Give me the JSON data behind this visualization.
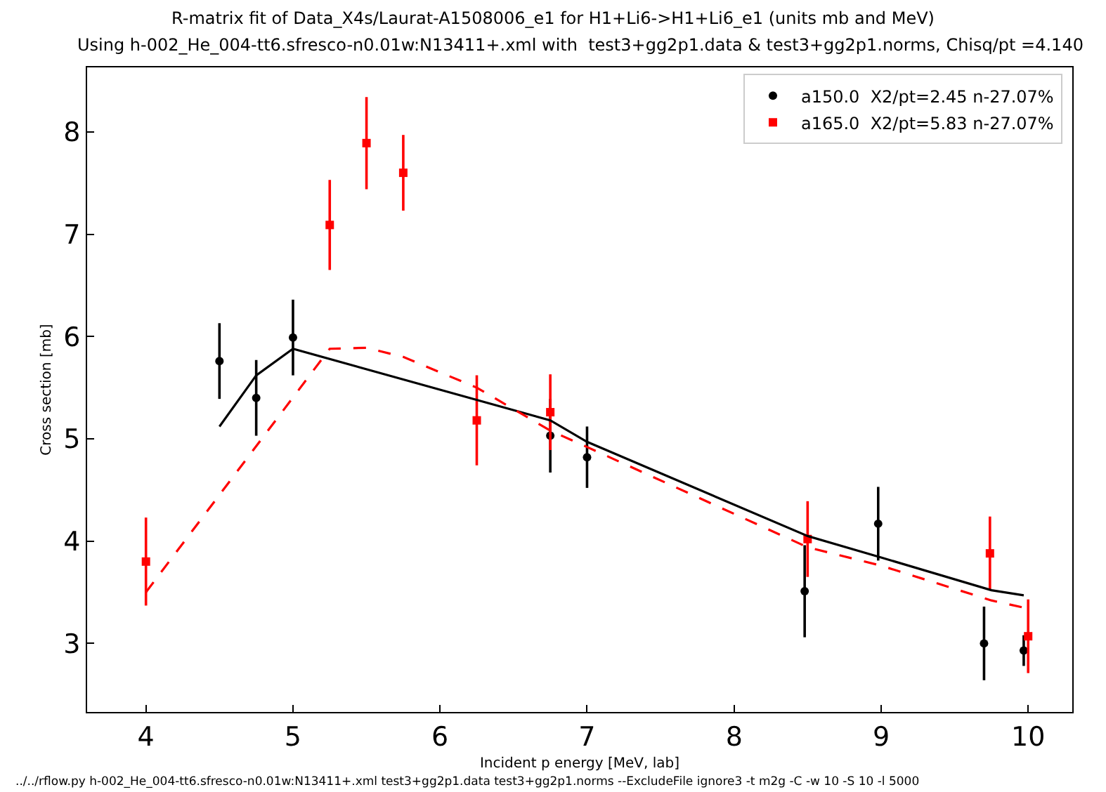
{
  "chart_data": {
    "type": "scatter",
    "title": "R-matrix fit of Data_X4s/Laurat-A1508006_e1 for H1+Li6->H1+Li6_e1 (units mb and MeV)",
    "subtitle": "Using h-002_He_004-tt6.sfresco-n0.01w:N13411+.xml with  test3+gg2p1.data & test3+gg2p1.norms, Chisq/pt =4.140",
    "xlabel": "Incident p energy [MeV, lab]",
    "ylabel": "Cross section [mb]",
    "annotations": [
      "../../rflow.py h-002_He_004-tt6.sfresco-n0.01w:N13411+.xml test3+gg2p1.data test3+gg2p1.norms --ExcludeFile ignore3 -t m2g -C -w 10 -S 10 -l 5000"
    ],
    "xlim": [
      3.6,
      10.3
    ],
    "ylim": [
      2.33,
      8.63
    ],
    "xticks": [
      4,
      5,
      6,
      7,
      8,
      9,
      10
    ],
    "yticks": [
      3,
      4,
      5,
      6,
      7,
      8
    ],
    "grid": false,
    "legend": "top right",
    "series": [
      {
        "name": "a150.0  X2/pt=2.45 n-27.07%",
        "type": "scatter",
        "marker": "circle",
        "color": "#000000",
        "x": [
          4.5,
          4.75,
          5.0,
          6.75,
          7.0,
          8.48,
          8.98,
          9.7,
          9.97
        ],
        "values": [
          5.76,
          5.4,
          5.99,
          5.03,
          4.82,
          3.51,
          4.17,
          3.0,
          2.93
        ],
        "errors": [
          0.37,
          0.37,
          0.37,
          0.36,
          0.3,
          0.45,
          0.36,
          0.36,
          0.15
        ]
      },
      {
        "name": "a165.0  X2/pt=5.83 n-27.07%",
        "type": "scatter",
        "marker": "square",
        "color": "#ff0000",
        "x": [
          4.0,
          5.25,
          5.5,
          5.75,
          6.25,
          6.75,
          8.5,
          9.74,
          10.0
        ],
        "values": [
          3.8,
          7.09,
          7.89,
          7.6,
          5.18,
          5.26,
          4.02,
          3.88,
          3.07
        ],
        "errors": [
          0.43,
          0.44,
          0.45,
          0.37,
          0.44,
          0.37,
          0.37,
          0.36,
          0.36
        ]
      },
      {
        "type": "line",
        "line_style": "solid",
        "marker": "none",
        "color": "#000000",
        "x": [
          4.5,
          4.75,
          5.0,
          6.75,
          7.0,
          8.5,
          9.0,
          9.75,
          9.97
        ],
        "values": [
          5.12,
          5.62,
          5.88,
          5.18,
          4.97,
          4.05,
          3.84,
          3.52,
          3.47
        ]
      },
      {
        "type": "line",
        "line_style": "dashed",
        "marker": "none",
        "color": "#ff0000",
        "x": [
          4.0,
          5.25,
          5.5,
          5.75,
          6.25,
          6.75,
          7.0,
          8.5,
          9.0,
          9.75,
          10.0
        ],
        "values": [
          3.5,
          5.88,
          5.89,
          5.8,
          5.5,
          5.08,
          4.92,
          3.94,
          3.76,
          3.42,
          3.34
        ]
      }
    ]
  }
}
